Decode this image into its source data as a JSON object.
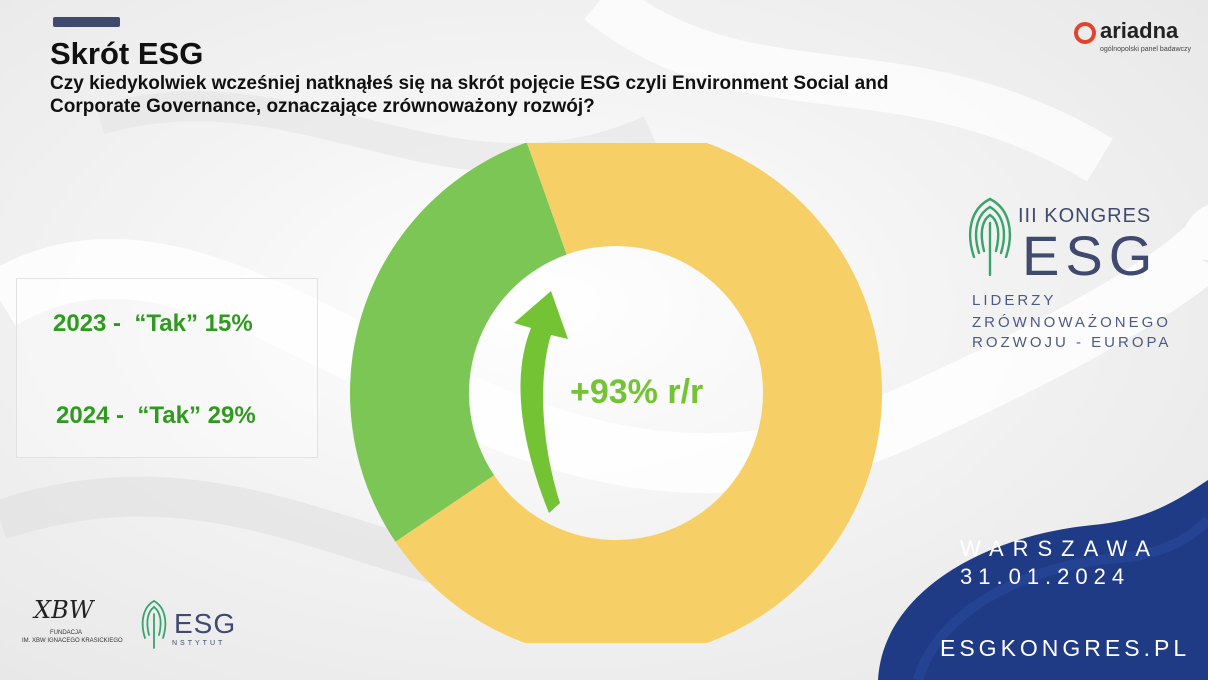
{
  "header": {
    "title": "Skrót ESG",
    "question": "Czy  kiedykolwiek wcześniej natknąłeś się na skrót pojęcie ESG czyli Environment Social and Corporate Governance, oznaczające zrównoważony rozwój?"
  },
  "legend": {
    "line_2023": "2023 -  “Tak” 15%",
    "line_2024": "2024 -  “Tak” 29%"
  },
  "change_label": "+93% r/r",
  "chart_data": {
    "type": "pie",
    "title": "",
    "slices": [
      {
        "label": "",
        "value": 29,
        "color": "#7cc655"
      },
      {
        "label": "",
        "value": 71,
        "color": "#f6cf66"
      }
    ]
  },
  "branding": {
    "ariadna_name": "ariadna",
    "ariadna_sub": "ogólnopolski panel badawczy",
    "kongres_line1": "III KONGRES",
    "kongres_line2": "ESG",
    "kongres_sub1": "LIDERZY",
    "kongres_sub2": "ZRÓWNOWAŻONEGO",
    "kongres_sub3": "ROZWOJU - EUROPA",
    "city": "WARSZAWA",
    "date": "31.01.2024",
    "website": "ESGKONGRES.PL",
    "fundacja_sig": "XBW",
    "fundacja_line1": "FUNDACJA",
    "fundacja_line2": "IM. XBW IGNACEGO KRASICKIEGO",
    "esg_instytut_word": "ESG",
    "esg_instytut_sub": "NSTYTUT"
  },
  "colors": {
    "green_text": "#2f9a1f",
    "arrow_green": "#74c335",
    "navy": "#3f4a6e",
    "corner_blue": "#1f3b86",
    "ariadna_red": "#e0452c"
  }
}
